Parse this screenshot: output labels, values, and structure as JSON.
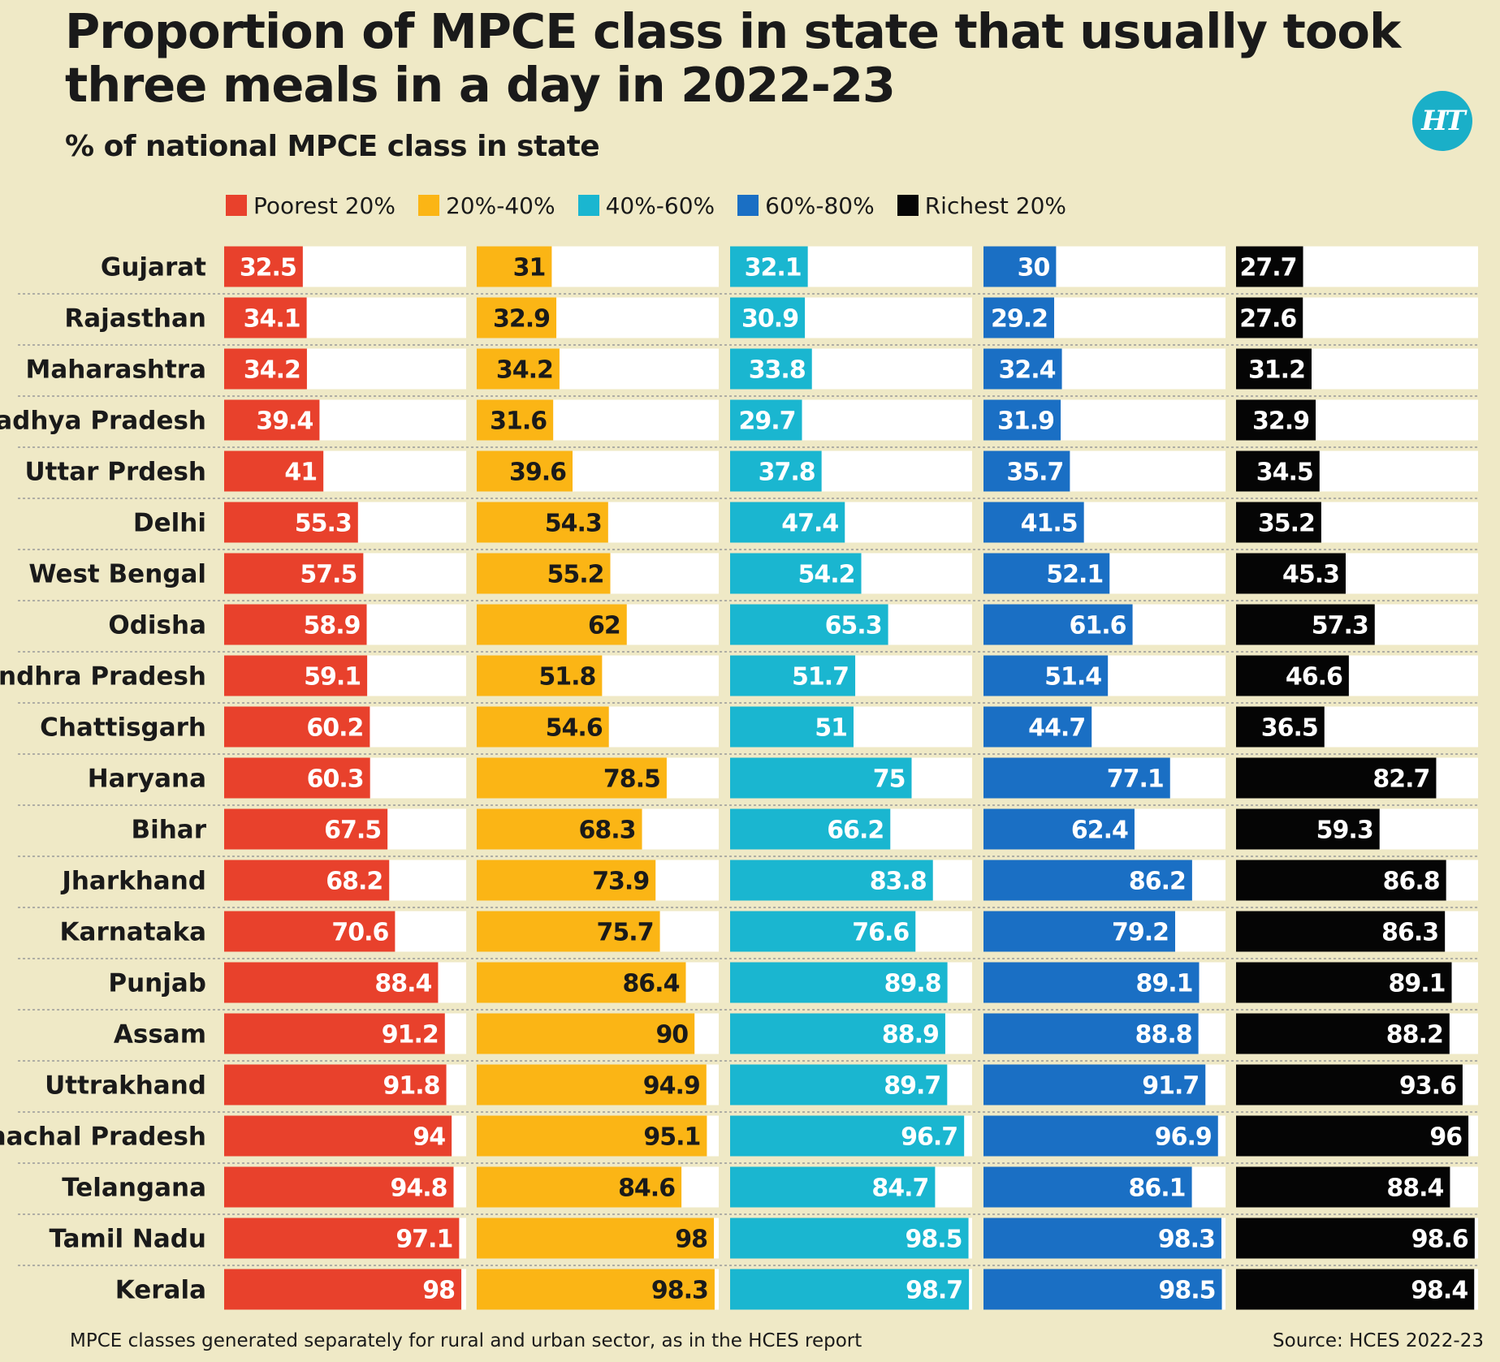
{
  "title": "Proportion of MPCE class in state that usually took three meals in a day in 2022-23",
  "subtitle": "% of national MPCE class in state",
  "logo_text": "HT",
  "footnote": "MPCE classes generated separately for rural and urban sector, as in the HCES report",
  "source": "Source: HCES 2022-23",
  "colors": {
    "background": "#efe9c6",
    "panel": "#ffffff",
    "divider": "#9a9a9a",
    "logo": "#1aafc8"
  },
  "chart_data": {
    "type": "bar",
    "orientation": "horizontal",
    "title": "Proportion of MPCE class in state that usually took three meals in a day in 2022-23",
    "subtitle": "% of national MPCE class in state",
    "xlim": [
      0,
      100
    ],
    "legend_position": "top",
    "categories": [
      "Gujarat",
      "Rajasthan",
      "Maharashtra",
      "Madhya Pradesh",
      "Uttar Prdesh",
      "Delhi",
      "West Bengal",
      "Odisha",
      "Andhra Pradesh",
      "Chattisgarh",
      "Haryana",
      "Bihar",
      "Jharkhand",
      "Karnataka",
      "Punjab",
      "Assam",
      "Uttrakhand",
      "Himachal Pradesh",
      "Telangana",
      "Tamil Nadu",
      "Kerala"
    ],
    "series": [
      {
        "name": "Poorest 20%",
        "color": "#e8412c",
        "label_color": "#ffffff",
        "values": [
          32.5,
          34.1,
          34.2,
          39.4,
          41,
          55.3,
          57.5,
          58.9,
          59.1,
          60.2,
          60.3,
          67.5,
          68.2,
          70.6,
          88.4,
          91.2,
          91.8,
          94,
          94.8,
          97.1,
          98
        ]
      },
      {
        "name": "20%-40%",
        "color": "#fbb515",
        "label_color": "#1a1a1a",
        "values": [
          31,
          32.9,
          34.2,
          31.6,
          39.6,
          54.3,
          55.2,
          62,
          51.8,
          54.6,
          78.5,
          68.3,
          73.9,
          75.7,
          86.4,
          90,
          94.9,
          95.1,
          84.6,
          98,
          98.3
        ]
      },
      {
        "name": "40%-60%",
        "color": "#1ab6d0",
        "label_color": "#ffffff",
        "values": [
          32.1,
          30.9,
          33.8,
          29.7,
          37.8,
          47.4,
          54.2,
          65.3,
          51.7,
          51,
          75,
          66.2,
          83.8,
          76.6,
          89.8,
          88.9,
          89.7,
          96.7,
          84.7,
          98.5,
          98.7
        ]
      },
      {
        "name": "60%-80%",
        "color": "#1a6fc4",
        "label_color": "#ffffff",
        "values": [
          30,
          29.2,
          32.4,
          31.9,
          35.7,
          41.5,
          52.1,
          61.6,
          51.4,
          44.7,
          77.1,
          62.4,
          86.2,
          79.2,
          89.1,
          88.8,
          91.7,
          96.9,
          86.1,
          98.3,
          98.5
        ]
      },
      {
        "name": "Richest 20%",
        "color": "#050505",
        "label_color": "#ffffff",
        "values": [
          27.7,
          27.6,
          31.2,
          32.9,
          34.5,
          35.2,
          45.3,
          57.3,
          46.6,
          36.5,
          82.7,
          59.3,
          86.8,
          86.3,
          89.1,
          88.2,
          93.6,
          96,
          88.4,
          98.6,
          98.4
        ]
      }
    ]
  }
}
